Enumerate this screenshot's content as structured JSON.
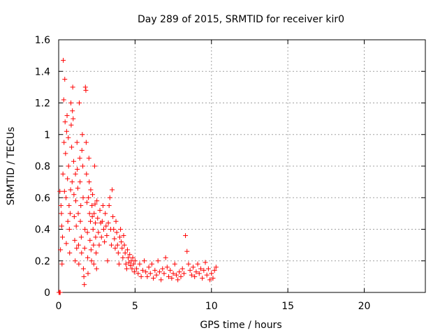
{
  "chart_data": {
    "type": "scatter",
    "title": "Day 289 of 2015, SRMTID for receiver kir0",
    "xlabel": "GPS time / hours",
    "ylabel": "SRMTID / TECUs",
    "xlim": [
      0,
      24
    ],
    "ylim": [
      0,
      1.6
    ],
    "grid": true,
    "marker": "+",
    "marker_color": "#ff0000",
    "x_ticks": [
      0,
      5,
      10,
      15,
      20
    ],
    "x_tick_labels": [
      "0",
      "5",
      "10",
      "15",
      "20"
    ],
    "y_ticks": [
      0,
      0.2,
      0.4,
      0.6,
      0.8,
      1.0,
      1.2,
      1.4,
      1.6
    ],
    "y_tick_labels": [
      "0",
      "0.2",
      "0.4",
      "0.6",
      "0.8",
      "1",
      "1.2",
      "1.4",
      "1.6"
    ],
    "series": [
      {
        "name": "kir0",
        "points": [
          [
            0.02,
            0.0
          ],
          [
            0.05,
            0.0
          ],
          [
            0.1,
            0.0
          ],
          [
            0.08,
            0.64
          ],
          [
            0.12,
            0.27
          ],
          [
            0.15,
            0.55
          ],
          [
            0.18,
            0.5
          ],
          [
            0.2,
            0.42
          ],
          [
            0.22,
            0.18
          ],
          [
            0.25,
            0.35
          ],
          [
            0.28,
            0.75
          ],
          [
            0.3,
            1.47
          ],
          [
            0.33,
            1.22
          ],
          [
            0.35,
            0.95
          ],
          [
            0.38,
            0.64
          ],
          [
            0.4,
            1.35
          ],
          [
            0.42,
            1.08
          ],
          [
            0.45,
            0.88
          ],
          [
            0.48,
            0.6
          ],
          [
            0.5,
            0.31
          ],
          [
            0.52,
            1.02
          ],
          [
            0.55,
            1.12
          ],
          [
            0.58,
            0.72
          ],
          [
            0.6,
            0.45
          ],
          [
            0.63,
            0.98
          ],
          [
            0.65,
            0.8
          ],
          [
            0.68,
            0.55
          ],
          [
            0.7,
            0.4
          ],
          [
            0.72,
            0.25
          ],
          [
            0.75,
            0.5
          ],
          [
            0.78,
            0.65
          ],
          [
            0.8,
            1.2
          ],
          [
            0.82,
            1.06
          ],
          [
            0.85,
            0.92
          ],
          [
            0.88,
            0.7
          ],
          [
            0.9,
            1.15
          ],
          [
            0.92,
            1.3
          ],
          [
            0.95,
            1.1
          ],
          [
            0.98,
            0.83
          ],
          [
            1.0,
            0.62
          ],
          [
            1.02,
            0.48
          ],
          [
            1.05,
            0.33
          ],
          [
            1.08,
            0.2
          ],
          [
            1.1,
            0.75
          ],
          [
            1.12,
            0.58
          ],
          [
            1.15,
            0.42
          ],
          [
            1.18,
            0.28
          ],
          [
            1.2,
            0.95
          ],
          [
            1.22,
            0.78
          ],
          [
            1.25,
            0.66
          ],
          [
            1.28,
            0.5
          ],
          [
            1.3,
            0.3
          ],
          [
            1.32,
            0.18
          ],
          [
            1.35,
            1.2
          ],
          [
            1.38,
            0.85
          ],
          [
            1.4,
            0.7
          ],
          [
            1.42,
            0.45
          ],
          [
            1.45,
            0.55
          ],
          [
            1.48,
            0.35
          ],
          [
            1.5,
            0.25
          ],
          [
            1.52,
            0.9
          ],
          [
            1.55,
            1.0
          ],
          [
            1.58,
            0.8
          ],
          [
            1.6,
            0.6
          ],
          [
            1.62,
            0.15
          ],
          [
            1.65,
            0.1
          ],
          [
            1.68,
            0.05
          ],
          [
            1.7,
            0.28
          ],
          [
            1.72,
            0.4
          ],
          [
            1.75,
            1.3
          ],
          [
            1.78,
            1.28
          ],
          [
            1.8,
            0.95
          ],
          [
            1.82,
            0.75
          ],
          [
            1.85,
            0.57
          ],
          [
            1.88,
            0.38
          ],
          [
            1.9,
            0.22
          ],
          [
            1.92,
            0.12
          ],
          [
            1.95,
            0.6
          ],
          [
            1.98,
            0.85
          ],
          [
            2.0,
            0.7
          ],
          [
            2.02,
            0.5
          ],
          [
            2.05,
            0.33
          ],
          [
            2.08,
            0.45
          ],
          [
            2.1,
            0.65
          ],
          [
            2.12,
            0.27
          ],
          [
            2.15,
            0.2
          ],
          [
            2.18,
            0.55
          ],
          [
            2.2,
            0.48
          ],
          [
            2.22,
            0.62
          ],
          [
            2.25,
            0.4
          ],
          [
            2.28,
            0.3
          ],
          [
            2.3,
            0.18
          ],
          [
            2.32,
            0.5
          ],
          [
            2.35,
            0.8
          ],
          [
            2.38,
            0.56
          ],
          [
            2.4,
            0.44
          ],
          [
            2.42,
            0.35
          ],
          [
            2.45,
            0.25
          ],
          [
            2.48,
            0.15
          ],
          [
            2.5,
            0.58
          ],
          [
            2.55,
            0.47
          ],
          [
            2.6,
            0.38
          ],
          [
            2.65,
            0.3
          ],
          [
            2.7,
            0.52
          ],
          [
            2.75,
            0.44
          ],
          [
            2.8,
            0.35
          ],
          [
            2.85,
            0.45
          ],
          [
            2.9,
            0.55
          ],
          [
            2.95,
            0.4
          ],
          [
            3.0,
            0.32
          ],
          [
            3.05,
            0.5
          ],
          [
            3.1,
            0.42
          ],
          [
            3.15,
            0.36
          ],
          [
            3.2,
            0.2
          ],
          [
            3.25,
            0.44
          ],
          [
            3.3,
            0.55
          ],
          [
            3.35,
            0.6
          ],
          [
            3.4,
            0.4
          ],
          [
            3.45,
            0.3
          ],
          [
            3.5,
            0.65
          ],
          [
            3.55,
            0.48
          ],
          [
            3.6,
            0.4
          ],
          [
            3.65,
            0.34
          ],
          [
            3.7,
            0.28
          ],
          [
            3.75,
            0.45
          ],
          [
            3.8,
            0.38
          ],
          [
            3.85,
            0.3
          ],
          [
            3.9,
            0.25
          ],
          [
            3.95,
            0.18
          ],
          [
            4.0,
            0.35
          ],
          [
            4.05,
            0.4
          ],
          [
            4.1,
            0.32
          ],
          [
            4.15,
            0.28
          ],
          [
            4.2,
            0.22
          ],
          [
            4.25,
            0.36
          ],
          [
            4.3,
            0.3
          ],
          [
            4.35,
            0.25
          ],
          [
            4.4,
            0.18
          ],
          [
            4.45,
            0.15
          ],
          [
            4.5,
            0.27
          ],
          [
            4.55,
            0.22
          ],
          [
            4.6,
            0.19
          ],
          [
            4.65,
            0.24
          ],
          [
            4.7,
            0.17
          ],
          [
            4.75,
            0.2
          ],
          [
            4.8,
            0.15
          ],
          [
            4.85,
            0.22
          ],
          [
            4.9,
            0.18
          ],
          [
            4.95,
            0.13
          ],
          [
            5.0,
            0.2
          ],
          [
            5.1,
            0.15
          ],
          [
            5.2,
            0.12
          ],
          [
            5.3,
            0.18
          ],
          [
            5.4,
            0.1
          ],
          [
            5.5,
            0.14
          ],
          [
            5.6,
            0.2
          ],
          [
            5.7,
            0.13
          ],
          [
            5.8,
            0.1
          ],
          [
            5.9,
            0.16
          ],
          [
            6.0,
            0.12
          ],
          [
            6.1,
            0.18
          ],
          [
            6.2,
            0.09
          ],
          [
            6.3,
            0.14
          ],
          [
            6.4,
            0.11
          ],
          [
            6.5,
            0.2
          ],
          [
            6.6,
            0.13
          ],
          [
            6.7,
            0.08
          ],
          [
            6.8,
            0.15
          ],
          [
            6.9,
            0.12
          ],
          [
            7.0,
            0.22
          ],
          [
            7.1,
            0.16
          ],
          [
            7.2,
            0.1
          ],
          [
            7.3,
            0.14
          ],
          [
            7.4,
            0.09
          ],
          [
            7.5,
            0.12
          ],
          [
            7.6,
            0.18
          ],
          [
            7.7,
            0.11
          ],
          [
            7.8,
            0.08
          ],
          [
            7.9,
            0.13
          ],
          [
            8.0,
            0.1
          ],
          [
            8.1,
            0.15
          ],
          [
            8.2,
            0.12
          ],
          [
            8.3,
            0.36
          ],
          [
            8.4,
            0.26
          ],
          [
            8.5,
            0.18
          ],
          [
            8.6,
            0.14
          ],
          [
            8.7,
            0.11
          ],
          [
            8.8,
            0.16
          ],
          [
            8.9,
            0.1
          ],
          [
            9.0,
            0.13
          ],
          [
            9.1,
            0.18
          ],
          [
            9.2,
            0.12
          ],
          [
            9.3,
            0.15
          ],
          [
            9.4,
            0.09
          ],
          [
            9.5,
            0.14
          ],
          [
            9.6,
            0.19
          ],
          [
            9.7,
            0.11
          ],
          [
            9.8,
            0.15
          ],
          [
            9.9,
            0.08
          ],
          [
            10.0,
            0.12
          ],
          [
            10.1,
            0.09
          ],
          [
            10.2,
            0.14
          ],
          [
            10.3,
            0.16
          ]
        ]
      }
    ]
  }
}
